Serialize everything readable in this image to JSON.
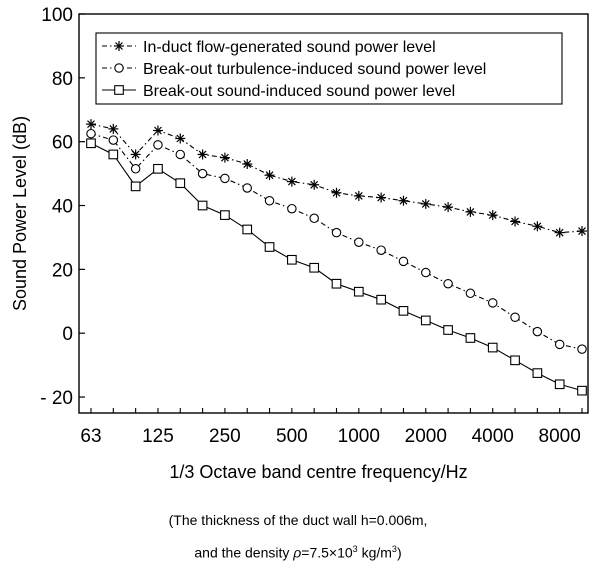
{
  "chart_data": {
    "type": "line",
    "xlabel": "1/3 Octave band centre frequency/Hz",
    "ylabel": "Sound Power Level (dB)",
    "ylim": [
      -25,
      100
    ],
    "yticks": [
      100,
      80,
      60,
      40,
      20,
      0,
      -20
    ],
    "ytick_labels": [
      "100",
      "80",
      "60",
      "40",
      "20",
      "0",
      "- 20"
    ],
    "categories": [
      "63",
      "80",
      "100",
      "125",
      "160",
      "200",
      "250",
      "315",
      "400",
      "500",
      "630",
      "800",
      "1000",
      "1250",
      "1600",
      "2000",
      "2500",
      "3150",
      "4000",
      "5000",
      "6300",
      "8000",
      "10000"
    ],
    "xtick_labels": [
      "63",
      "125",
      "250",
      "500",
      "1000",
      "2000",
      "4000",
      "8000"
    ],
    "legend_position": "top",
    "grid": false,
    "series": [
      {
        "name": "In-duct flow-generated sound power level",
        "marker": "star",
        "style": "dash-dot",
        "values": [
          65.5,
          64,
          56,
          63.5,
          61,
          56,
          55,
          53,
          49.5,
          47.5,
          46.5,
          44,
          43,
          42.5,
          41.5,
          40.5,
          39.5,
          38,
          37,
          35,
          33.5,
          31.5,
          32
        ]
      },
      {
        "name": "Break-out turbulence-induced sound power level",
        "marker": "circle",
        "style": "dash-dot",
        "values": [
          62.5,
          60.5,
          51.5,
          59,
          56,
          50,
          48.5,
          45.5,
          41.5,
          39,
          36,
          31.5,
          28.5,
          26,
          22.5,
          19,
          15.5,
          12.5,
          9.5,
          5,
          0.5,
          -3.5,
          -5
        ]
      },
      {
        "name": "Break-out sound-induced sound power level",
        "marker": "square",
        "style": "solid",
        "values": [
          59.5,
          56,
          46,
          51.5,
          47,
          40,
          37,
          32.5,
          27,
          23,
          20.5,
          15.5,
          13,
          10.5,
          7,
          4,
          1,
          -1.5,
          -4.5,
          -8.5,
          -12.5,
          -16,
          -18
        ]
      }
    ]
  },
  "caption": {
    "line1": "(The thickness of the duct wall h=0.006m,",
    "line2_prefix": "and the density ",
    "line2_rho": "ρ",
    "line2_value": "=7.5",
    "line2_times": "×10",
    "line2_exp": "3",
    "line2_unit": " kg/m",
    "line2_unit_exp": "3",
    "line2_suffix": ")"
  }
}
